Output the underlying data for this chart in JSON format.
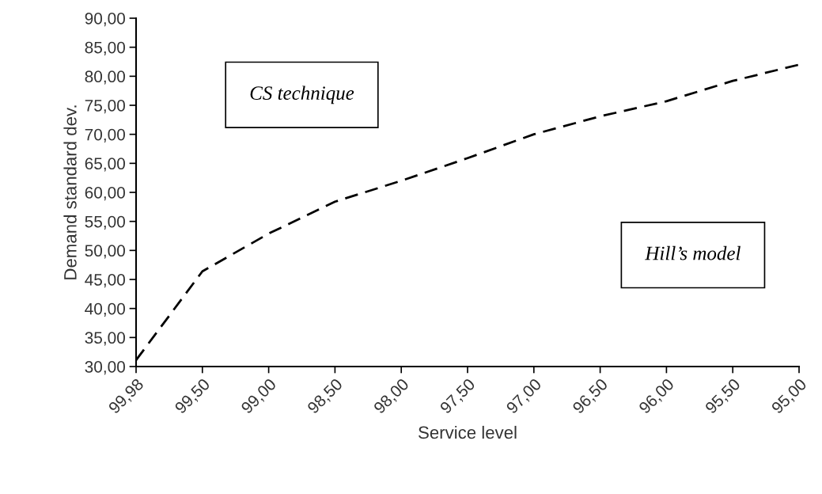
{
  "chart_data": {
    "type": "line",
    "xlabel": "Service level",
    "ylabel": "Demand standard dev.",
    "categories": [
      "99,98",
      "99,50",
      "99,00",
      "98,50",
      "98,00",
      "97,50",
      "97,00",
      "96,50",
      "96,00",
      "95,50",
      "95,00"
    ],
    "series": [
      {
        "color": "#000000",
        "values": [
          31.1,
          46.4,
          52.9,
          58.4,
          62.0,
          65.9,
          70.0,
          73.1,
          75.7,
          79.2,
          82.0
        ]
      }
    ],
    "line_style": "dashed",
    "marker": "none",
    "grid": false,
    "legend": false,
    "ylim": [
      30,
      90
    ],
    "yticks": [
      {
        "value": 30,
        "label": "30,00"
      },
      {
        "value": 35,
        "label": "35,00"
      },
      {
        "value": 40,
        "label": "40,00"
      },
      {
        "value": 45,
        "label": "45,00"
      },
      {
        "value": 50,
        "label": "50,00"
      },
      {
        "value": 55,
        "label": "55,00"
      },
      {
        "value": 60,
        "label": "60,00"
      },
      {
        "value": 65,
        "label": "65,00"
      },
      {
        "value": 70,
        "label": "70,00"
      },
      {
        "value": 75,
        "label": "75,00"
      },
      {
        "value": 80,
        "label": "80,00"
      },
      {
        "value": 85,
        "label": "85,00"
      },
      {
        "value": 90,
        "label": "90,00"
      }
    ],
    "annotations": [
      "CS technique",
      "Hill’s model"
    ]
  }
}
